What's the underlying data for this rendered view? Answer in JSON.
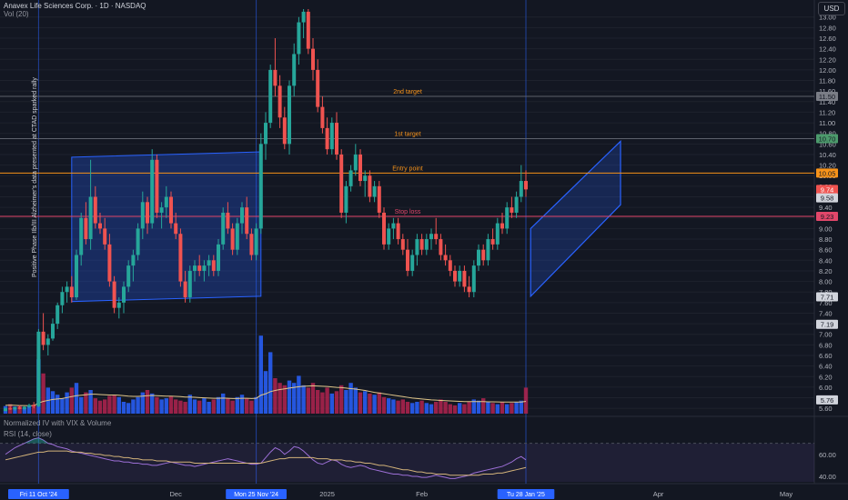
{
  "header": {
    "symbol_line": "Anavex Life Sciences Corp. · 1D · NASDAQ",
    "volume_label": "Vol (20)",
    "currency": "USD"
  },
  "indicators": {
    "pane1_label": "Normalized IV with VIX & Volume",
    "pane2_label": "RSI (14, close)"
  },
  "annotation_text": "Positive Phase IIb/III Alzheimer's data presented at CTAD sparked rally",
  "colors": {
    "bg": "#131722",
    "grid": "#1e222d",
    "up": "#26a69a",
    "down": "#ef5350",
    "vol_up": "#2962ff",
    "vol_down": "#b2234f",
    "level_orange": "#f7931a",
    "level_red": "#e1476a",
    "level_grey": "#5d606b",
    "channel": "#2962ff",
    "rsi": "#9c6fd6",
    "rsi_ma": "#d3b37a"
  },
  "chart_data": [
    {
      "type": "candlestick",
      "ylim": [
        5.5,
        13.15
      ],
      "y_ticks": [
        "13.00",
        "12.80",
        "12.60",
        "12.40",
        "12.20",
        "12.00",
        "11.80",
        "11.60",
        "11.40",
        "11.20",
        "11.00",
        "10.80",
        "10.60",
        "10.40",
        "10.20",
        "10.00",
        "9.80",
        "9.60",
        "9.40",
        "9.20",
        "9.00",
        "8.80",
        "8.60",
        "8.40",
        "8.20",
        "8.00",
        "7.80",
        "7.60",
        "7.40",
        "7.20",
        "7.00",
        "6.80",
        "6.60",
        "6.40",
        "6.20",
        "6.00",
        "5.80",
        "5.60"
      ],
      "x_ticks": [
        {
          "label": "Fri 11 Oct '24",
          "index": 7,
          "highlight": true
        },
        {
          "label": "Dec",
          "index": 36,
          "highlight": false
        },
        {
          "label": "Mon 25 Nov '24",
          "index": 53,
          "highlight": true
        },
        {
          "label": "2025",
          "index": 68,
          "highlight": false
        },
        {
          "label": "Feb",
          "index": 88,
          "highlight": false
        },
        {
          "label": "Tu 28 Jan '25",
          "index": 110,
          "highlight": true
        },
        {
          "label": "Apr",
          "index": 138,
          "highlight": false
        },
        {
          "label": "May",
          "index": 165,
          "highlight": false
        }
      ],
      "levels": [
        {
          "label": "2nd target",
          "value": 11.5,
          "badge": "11.50",
          "color": "#5d606b",
          "badge_color": "#7a7d86"
        },
        {
          "label": "1st target",
          "value": 10.7,
          "badge": "10.70",
          "color": "#5d606b",
          "badge_color": "#4c9a6c"
        },
        {
          "label": "Entry point",
          "value": 10.05,
          "badge": "10.05",
          "color": "#f7931a",
          "badge_color": "#f7931a"
        },
        {
          "label": "Stop loss",
          "value": 9.23,
          "badge": "9.23",
          "color": "#e1476a",
          "badge_color": "#e1476a"
        }
      ],
      "price_badges": [
        {
          "text": "9.74",
          "value": 9.74,
          "color": "#ef5350"
        },
        {
          "text": "9.58",
          "value": 9.58,
          "color": "#d1d4dc"
        },
        {
          "text": "7.71",
          "value": 7.71,
          "color": "#d1d4dc"
        },
        {
          "text": "7.19",
          "value": 7.19,
          "color": "#d1d4dc"
        },
        {
          "text": "5.76",
          "value": 5.76,
          "color": "#d1d4dc"
        }
      ],
      "rally_box": {
        "x0": 14,
        "x1": 54,
        "top_start": 10.35,
        "top_end": 10.45,
        "bottom_start": 7.62,
        "bottom_end": 7.72
      },
      "up_channel": {
        "x0": 111,
        "x1": 130,
        "top_start": 9.0,
        "top_end": 10.65,
        "bottom_start": 7.72,
        "bottom_end": 9.45
      },
      "candles": [
        [
          5.55,
          5.62,
          5.54,
          5.6
        ],
        [
          5.6,
          5.64,
          5.57,
          5.58
        ],
        [
          5.58,
          5.63,
          5.55,
          5.62
        ],
        [
          5.62,
          5.66,
          5.58,
          5.59
        ],
        [
          5.59,
          5.64,
          5.56,
          5.63
        ],
        [
          5.63,
          5.69,
          5.6,
          5.66
        ],
        [
          5.66,
          5.72,
          5.6,
          5.64
        ],
        [
          5.64,
          7.1,
          5.62,
          7.05
        ],
        [
          7.05,
          7.4,
          6.7,
          6.8
        ],
        [
          6.8,
          7.0,
          6.6,
          6.92
        ],
        [
          6.92,
          7.3,
          6.88,
          7.2
        ],
        [
          7.2,
          7.6,
          7.1,
          7.55
        ],
        [
          7.55,
          7.9,
          7.4,
          7.8
        ],
        [
          7.8,
          8.0,
          7.6,
          7.9
        ],
        [
          7.9,
          8.1,
          7.6,
          7.7
        ],
        [
          7.7,
          8.6,
          7.65,
          8.5
        ],
        [
          8.5,
          9.3,
          8.3,
          9.2
        ],
        [
          9.2,
          9.5,
          8.7,
          8.8
        ],
        [
          8.8,
          10.3,
          8.6,
          9.6
        ],
        [
          9.6,
          9.8,
          9.0,
          9.1
        ],
        [
          9.1,
          9.3,
          8.9,
          9.0
        ],
        [
          9.0,
          9.2,
          8.6,
          8.7
        ],
        [
          8.7,
          8.9,
          7.9,
          8.0
        ],
        [
          8.0,
          8.1,
          7.4,
          7.5
        ],
        [
          7.5,
          7.7,
          7.3,
          7.6
        ],
        [
          7.6,
          8.0,
          7.4,
          7.9
        ],
        [
          7.9,
          8.4,
          7.8,
          8.3
        ],
        [
          8.3,
          8.6,
          8.0,
          8.5
        ],
        [
          8.5,
          9.1,
          8.4,
          9.0
        ],
        [
          9.0,
          9.7,
          8.8,
          9.5
        ],
        [
          9.5,
          9.6,
          8.9,
          9.1
        ],
        [
          9.1,
          10.5,
          9.0,
          10.3
        ],
        [
          10.3,
          10.4,
          9.2,
          9.3
        ],
        [
          9.3,
          9.5,
          9.0,
          9.4
        ],
        [
          9.4,
          9.8,
          9.2,
          9.6
        ],
        [
          9.6,
          9.7,
          9.0,
          9.1
        ],
        [
          9.1,
          9.3,
          8.8,
          8.9
        ],
        [
          8.9,
          9.0,
          7.9,
          8.0
        ],
        [
          8.0,
          8.2,
          7.6,
          7.7
        ],
        [
          7.7,
          8.3,
          7.6,
          8.2
        ],
        [
          8.2,
          8.4,
          8.0,
          8.3
        ],
        [
          8.3,
          8.5,
          8.1,
          8.2
        ],
        [
          8.2,
          8.4,
          8.0,
          8.3
        ],
        [
          8.3,
          8.5,
          8.1,
          8.4
        ],
        [
          8.4,
          8.5,
          8.1,
          8.2
        ],
        [
          8.2,
          8.8,
          8.1,
          8.7
        ],
        [
          8.7,
          9.4,
          8.6,
          9.3
        ],
        [
          9.3,
          9.5,
          8.9,
          9.0
        ],
        [
          9.0,
          9.1,
          8.5,
          8.6
        ],
        [
          8.6,
          9.2,
          8.5,
          9.1
        ],
        [
          9.1,
          9.5,
          8.9,
          9.4
        ],
        [
          9.4,
          9.6,
          8.8,
          8.9
        ],
        [
          8.9,
          9.0,
          8.4,
          8.5
        ],
        [
          8.5,
          9.1,
          8.4,
          9.0
        ],
        [
          9.0,
          10.8,
          8.9,
          10.6
        ],
        [
          10.6,
          11.2,
          10.3,
          11.0
        ],
        [
          11.0,
          12.1,
          10.9,
          12.0
        ],
        [
          12.0,
          12.6,
          11.5,
          11.7
        ],
        [
          11.7,
          11.9,
          10.9,
          11.1
        ],
        [
          11.1,
          11.3,
          10.5,
          10.6
        ],
        [
          10.6,
          11.8,
          10.4,
          11.7
        ],
        [
          11.7,
          12.5,
          11.5,
          12.3
        ],
        [
          12.3,
          13.0,
          12.1,
          12.9
        ],
        [
          12.9,
          13.15,
          12.6,
          13.1
        ],
        [
          13.1,
          13.15,
          12.3,
          12.4
        ],
        [
          12.4,
          12.6,
          11.8,
          12.0
        ],
        [
          12.0,
          12.2,
          11.2,
          11.3
        ],
        [
          11.3,
          11.5,
          10.8,
          10.9
        ],
        [
          10.9,
          11.1,
          10.4,
          10.5
        ],
        [
          10.5,
          11.1,
          10.4,
          11.0
        ],
        [
          11.0,
          11.2,
          10.3,
          10.4
        ],
        [
          10.4,
          10.5,
          9.2,
          9.3
        ],
        [
          9.3,
          9.9,
          9.1,
          9.8
        ],
        [
          9.8,
          10.2,
          9.7,
          10.1
        ],
        [
          10.1,
          10.6,
          10.0,
          10.4
        ],
        [
          10.4,
          10.5,
          9.8,
          9.9
        ],
        [
          9.9,
          10.1,
          9.6,
          10.0
        ],
        [
          10.0,
          10.1,
          9.5,
          9.6
        ],
        [
          9.6,
          9.9,
          9.5,
          9.8
        ],
        [
          9.8,
          9.9,
          9.2,
          9.3
        ],
        [
          9.3,
          9.4,
          8.6,
          8.7
        ],
        [
          8.7,
          9.1,
          8.6,
          9.0
        ],
        [
          9.0,
          9.2,
          8.8,
          9.1
        ],
        [
          9.1,
          9.2,
          8.7,
          8.8
        ],
        [
          8.8,
          8.9,
          8.5,
          8.6
        ],
        [
          8.6,
          8.8,
          8.1,
          8.2
        ],
        [
          8.2,
          8.6,
          8.1,
          8.5
        ],
        [
          8.5,
          8.9,
          8.3,
          8.8
        ],
        [
          8.8,
          8.9,
          8.5,
          8.6
        ],
        [
          8.6,
          8.9,
          8.5,
          8.8
        ],
        [
          8.8,
          9.0,
          8.6,
          8.9
        ],
        [
          8.9,
          9.2,
          8.7,
          8.8
        ],
        [
          8.8,
          8.9,
          8.4,
          8.5
        ],
        [
          8.5,
          8.7,
          8.3,
          8.4
        ],
        [
          8.4,
          8.5,
          8.1,
          8.2
        ],
        [
          8.2,
          8.3,
          7.9,
          8.0
        ],
        [
          8.0,
          8.3,
          7.9,
          8.2
        ],
        [
          8.2,
          8.3,
          7.8,
          7.9
        ],
        [
          7.9,
          8.1,
          7.7,
          7.8
        ],
        [
          7.8,
          8.4,
          7.7,
          8.3
        ],
        [
          8.3,
          8.7,
          8.2,
          8.6
        ],
        [
          8.6,
          8.7,
          8.3,
          8.4
        ],
        [
          8.4,
          8.9,
          8.3,
          8.8
        ],
        [
          8.8,
          9.0,
          8.6,
          8.7
        ],
        [
          8.7,
          9.2,
          8.6,
          9.1
        ],
        [
          9.1,
          9.3,
          8.9,
          9.0
        ],
        [
          9.0,
          9.5,
          8.9,
          9.4
        ],
        [
          9.4,
          9.6,
          9.2,
          9.3
        ],
        [
          9.3,
          9.7,
          9.2,
          9.6
        ],
        [
          9.6,
          10.2,
          9.5,
          9.9
        ],
        [
          9.9,
          10.1,
          9.6,
          9.74
        ]
      ],
      "volume_ylim": [
        0,
        5000000
      ],
      "volume": [
        320000,
        400000,
        300000,
        350000,
        280000,
        330000,
        380000,
        2300000,
        1700000,
        1100000,
        950000,
        800000,
        650000,
        900000,
        1100000,
        1300000,
        700000,
        900000,
        1000000,
        650000,
        550000,
        600000,
        750000,
        800000,
        700000,
        500000,
        450000,
        600000,
        700000,
        900000,
        1000000,
        850000,
        700000,
        600000,
        650000,
        750000,
        600000,
        550000,
        500000,
        800000,
        600000,
        550000,
        650000,
        500000,
        600000,
        700000,
        850000,
        650000,
        550000,
        700000,
        800000,
        650000,
        550000,
        700000,
        3300000,
        1800000,
        2600000,
        1500000,
        1300000,
        1200000,
        1400000,
        1300000,
        1600000,
        1200000,
        1100000,
        1300000,
        1000000,
        900000,
        1100000,
        850000,
        950000,
        1200000,
        1000000,
        1300000,
        1100000,
        900000,
        950000,
        850000,
        800000,
        900000,
        700000,
        650000,
        600000,
        550000,
        600000,
        500000,
        450000,
        500000,
        550000,
        450000,
        400000,
        500000,
        600000,
        500000,
        400000,
        350000,
        450000,
        400000,
        500000,
        600000,
        550000,
        650000,
        500000,
        450000,
        400000,
        500000,
        400000,
        450000,
        500000,
        550000,
        1100000
      ],
      "volume_ma": [
        350000,
        360000,
        350000,
        340000,
        340000,
        335000,
        340000,
        450000,
        520000,
        560000,
        600000,
        620000,
        640000,
        680000,
        720000,
        760000,
        780000,
        800000,
        820000,
        820000,
        810000,
        800000,
        790000,
        790000,
        780000,
        760000,
        740000,
        730000,
        730000,
        740000,
        760000,
        770000,
        760000,
        750000,
        740000,
        740000,
        730000,
        720000,
        700000,
        700000,
        690000,
        680000,
        670000,
        660000,
        650000,
        650000,
        660000,
        650000,
        640000,
        640000,
        650000,
        650000,
        640000,
        650000,
        780000,
        840000,
        930000,
        980000,
        1020000,
        1050000,
        1080000,
        1110000,
        1140000,
        1160000,
        1170000,
        1180000,
        1170000,
        1160000,
        1150000,
        1130000,
        1110000,
        1100000,
        1080000,
        1060000,
        1040000,
        1010000,
        980000,
        940000,
        900000,
        870000,
        840000,
        810000,
        780000,
        750000,
        720000,
        690000,
        660000,
        640000,
        620000,
        600000,
        580000,
        570000,
        560000,
        550000,
        540000,
        530000,
        520000,
        510000,
        510000,
        510000,
        510000,
        510000,
        500000,
        500000,
        495000,
        490000,
        490000,
        490000,
        490000,
        490000,
        520000
      ],
      "rsi_ylim": [
        35,
        78
      ],
      "rsi_ticks": [
        "60.00",
        "40.00"
      ],
      "rsi_bands": [
        70,
        30
      ],
      "rsi": [
        60,
        63,
        66,
        68,
        70,
        72,
        74,
        75,
        73,
        70,
        69,
        67,
        66,
        65,
        63,
        62,
        61,
        60,
        59,
        58,
        57,
        56,
        55,
        54,
        54,
        53,
        53,
        52,
        52,
        51,
        51,
        50,
        50,
        51,
        52,
        53,
        52,
        51,
        50,
        50,
        49,
        50,
        51,
        52,
        53,
        54,
        55,
        56,
        55,
        54,
        53,
        52,
        51,
        51,
        52,
        57,
        62,
        66,
        64,
        60,
        63,
        67,
        66,
        63,
        59,
        55,
        52,
        51,
        53,
        55,
        54,
        51,
        49,
        48,
        49,
        50,
        49,
        47,
        46,
        45,
        44,
        43,
        42,
        42,
        41,
        41,
        40,
        40,
        39,
        39,
        40,
        41,
        40,
        39,
        38,
        38,
        39,
        40,
        41,
        43,
        44,
        45,
        46,
        47,
        48,
        49,
        51,
        53,
        56,
        58,
        55
      ],
      "rsi_ma": [
        55,
        56,
        57,
        58,
        59,
        60,
        61,
        62,
        62,
        63,
        63,
        63,
        63,
        63,
        62,
        62,
        62,
        61,
        61,
        60,
        60,
        59,
        59,
        58,
        58,
        57,
        57,
        56,
        56,
        55,
        55,
        55,
        54,
        54,
        54,
        53,
        53,
        53,
        53,
        53,
        52,
        52,
        52,
        52,
        52,
        52,
        52,
        52,
        52,
        52,
        52,
        52,
        52,
        52,
        52,
        53,
        54,
        55,
        56,
        56,
        57,
        57,
        57,
        57,
        57,
        57,
        56,
        56,
        56,
        55,
        55,
        55,
        54,
        54,
        53,
        53,
        52,
        52,
        51,
        50,
        50,
        49,
        48,
        47,
        46,
        46,
        45,
        44,
        44,
        43,
        43,
        42,
        42,
        42,
        41,
        41,
        41,
        41,
        41,
        41,
        41,
        42,
        42,
        42,
        43,
        43,
        44,
        45,
        46,
        47,
        48
      ]
    }
  ]
}
